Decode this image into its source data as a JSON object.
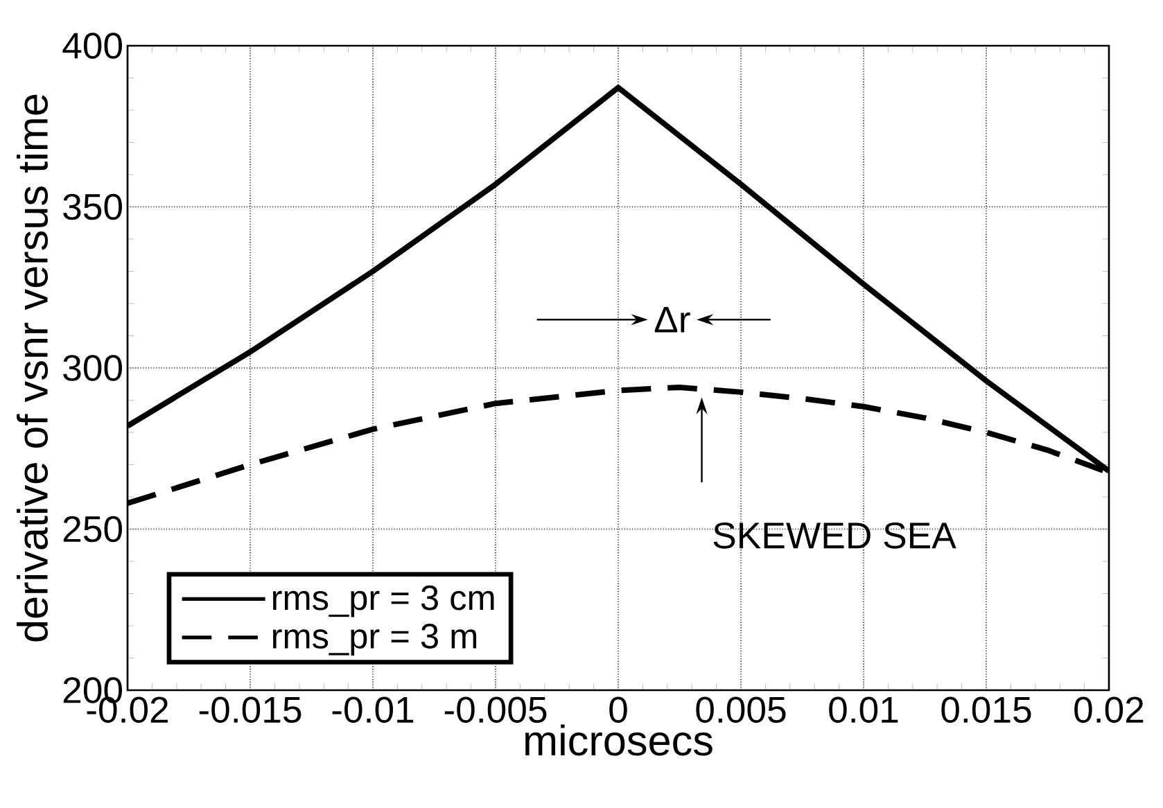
{
  "chart_data": {
    "type": "line",
    "xlabel": "microsecs",
    "ylabel": "derivative of vsnr versus time",
    "x": [
      -0.02,
      -0.015,
      -0.01,
      -0.005,
      0,
      0.005,
      0.01,
      0.015,
      0.02
    ],
    "series": [
      {
        "name": "rms_pr = 3 cm",
        "color": "#000000",
        "line_style": "solid",
        "values": [
          282,
          305,
          330,
          357,
          387,
          357,
          326,
          296,
          268
        ]
      },
      {
        "name": "rms_pr = 3 m",
        "color": "#000000",
        "line_style": "dashed",
        "x": [
          -0.02,
          -0.015,
          -0.01,
          -0.005,
          0,
          0.0025,
          0.005,
          0.0075,
          0.01,
          0.0125,
          0.015,
          0.0175,
          0.02
        ],
        "values": [
          258,
          270,
          281,
          289,
          293,
          294,
          292.5,
          290.5,
          288,
          284.5,
          280,
          274.5,
          267.5
        ]
      }
    ],
    "xlim": [
      -0.02,
      0.02
    ],
    "ylim": [
      200,
      400
    ],
    "xticks": [
      -0.02,
      -0.015,
      -0.01,
      -0.005,
      0,
      0.005,
      0.01,
      0.015,
      0.02
    ],
    "yticks": [
      200,
      250,
      300,
      350,
      400
    ],
    "grid": true,
    "legend": "bottom left",
    "marker": "none",
    "annotations": [
      "Δr",
      "SKEWED SEA"
    ]
  }
}
